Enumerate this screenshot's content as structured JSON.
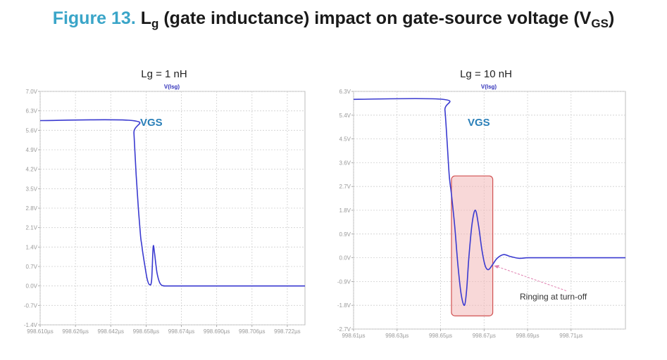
{
  "figure": {
    "number": "Figure 13.",
    "title_main": "L",
    "title_main_sub": "g",
    "title_rest": " (gate inductance) impact on gate-source voltage (V",
    "title_rest_sub": "GS",
    "title_end": ")"
  },
  "colors": {
    "title_number": "#3aa5c8",
    "trace": "#3a3ad0",
    "label": "#2a7fb8",
    "highlight_fill": "#f2b8b8",
    "highlight_stroke": "#d05050",
    "arrow": "#e080b0"
  },
  "chart_data": [
    {
      "type": "line",
      "title": "Lg = 1 nH",
      "trace_label": "V(lsg)",
      "series_label": "VGS",
      "ylim": [
        -1.4,
        7.0
      ],
      "xlim": [
        998.61,
        998.73
      ],
      "yticks": [
        7.0,
        6.3,
        5.6,
        4.9,
        4.2,
        3.5,
        2.8,
        2.1,
        1.4,
        0.7,
        0.0,
        -0.7,
        -1.4
      ],
      "ytick_labels": [
        "7.0V",
        "6.3V",
        "5.6V",
        "4.9V",
        "4.2V",
        "3.5V",
        "2.8V",
        "2.1V",
        "1.4V",
        "0.7V",
        "0.0V",
        "-0.7V",
        "-1.4V"
      ],
      "xticks": [
        998.61,
        998.626,
        998.642,
        998.658,
        998.674,
        998.69,
        998.706,
        998.722
      ],
      "xtick_labels": [
        "998.610µs",
        "998.626µs",
        "998.642µs",
        "998.658µs",
        "998.674µs",
        "998.690µs",
        "998.706µs",
        "998.722µs"
      ],
      "grid": true,
      "series": [
        {
          "x": [
            998.61,
            998.652,
            998.6525,
            998.6535,
            998.6545,
            998.6555,
            998.656,
            998.6565,
            998.6575,
            998.6585,
            998.6595,
            998.6605,
            998.6612,
            998.6618,
            998.6624,
            998.663,
            998.664,
            998.665,
            998.6665,
            998.6685,
            998.671,
            998.73
          ],
          "y": [
            5.95,
            5.95,
            5.5,
            4.0,
            2.8,
            1.8,
            1.5,
            1.2,
            0.7,
            0.25,
            0.05,
            0.2,
            1.4,
            1.2,
            0.8,
            0.45,
            0.15,
            0.03,
            0.0,
            0.0,
            0.0,
            0.0
          ]
        }
      ]
    },
    {
      "type": "line",
      "title": "Lg = 10 nH",
      "trace_label": "V(lsg)",
      "series_label": "VGS",
      "ylim": [
        -2.7,
        6.3
      ],
      "xlim": [
        998.61,
        998.735
      ],
      "yticks": [
        6.3,
        5.4,
        4.5,
        3.6,
        2.7,
        1.8,
        0.9,
        0.0,
        -0.9,
        -1.8,
        -2.7
      ],
      "ytick_labels": [
        "6.3V",
        "5.4V",
        "4.5V",
        "3.6V",
        "2.7V",
        "1.8V",
        "0.9V",
        "0.0V",
        "-0.9V",
        "-1.8V",
        "-2.7V"
      ],
      "xticks": [
        998.61,
        998.63,
        998.65,
        998.67,
        998.69,
        998.71
      ],
      "xtick_labels": [
        "998.61µs",
        "998.63µs",
        "998.65µs",
        "998.67µs",
        "998.69µs",
        "998.71µs"
      ],
      "grid": true,
      "annotation": "Ringing at turn-off",
      "series": [
        {
          "x": [
            998.61,
            998.651,
            998.652,
            998.653,
            998.654,
            998.655,
            998.6565,
            998.658,
            998.6595,
            998.661,
            998.662,
            998.663,
            998.6645,
            998.666,
            998.6675,
            998.669,
            998.6705,
            998.672,
            998.674,
            998.676,
            998.679,
            998.682,
            998.686,
            998.69,
            998.696,
            998.735
          ],
          "y": [
            6.0,
            6.0,
            5.6,
            4.4,
            3.1,
            2.4,
            1.2,
            -0.3,
            -1.4,
            -1.8,
            -1.2,
            0.0,
            1.3,
            1.8,
            1.2,
            0.3,
            -0.3,
            -0.45,
            -0.25,
            -0.02,
            0.12,
            0.05,
            -0.02,
            0.0,
            0.0,
            0.0
          ]
        }
      ],
      "highlight_x": [
        998.655,
        998.674
      ],
      "highlight_y": [
        -2.2,
        3.1
      ]
    }
  ]
}
